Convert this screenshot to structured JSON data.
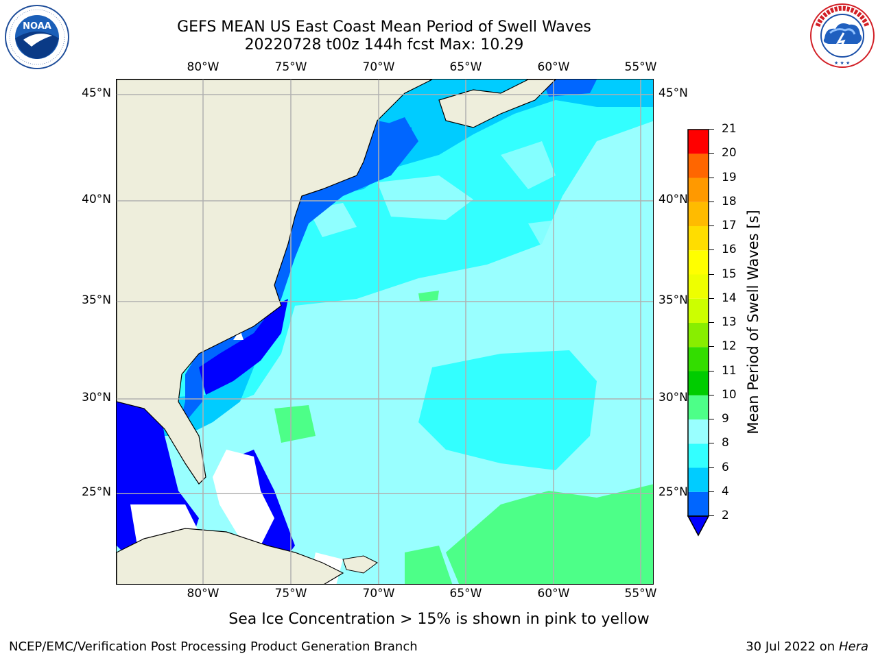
{
  "title_line1": "GEFS MEAN US East Coast Mean Period of Swell Waves",
  "title_line2": "20220728 t00z 144h fcst   Max: 10.29",
  "lon_labels": [
    "80°W",
    "75°W",
    "70°W",
    "65°W",
    "60°W",
    "55°W"
  ],
  "lat_labels": [
    "45°N",
    "40°N",
    "35°N",
    "30°N",
    "25°N"
  ],
  "colorbar": {
    "label": "Mean Period of Swell Waves [s]",
    "ticks": [
      "2",
      "4",
      "6",
      "8",
      "9",
      "10",
      "11",
      "12",
      "13",
      "14",
      "15",
      "16",
      "17",
      "18",
      "19",
      "20",
      "21"
    ],
    "colors": [
      "#0066ff",
      "#00ccff",
      "#33ffff",
      "#99ffff",
      "#4dff88",
      "#00cc00",
      "#33dd00",
      "#88ee00",
      "#ccff00",
      "#eeff00",
      "#ffff00",
      "#ffdd00",
      "#ffbb00",
      "#ff9900",
      "#ff6600",
      "#ff3300",
      "#ff0000"
    ],
    "under_color": "#0000ff"
  },
  "ice_note": "Sea Ice Concentration > 15% is shown in pink to yellow",
  "footer_left": "NCEP/EMC/Verification Post Processing Product Generation Branch",
  "footer_right_date": "30 Jul 2022 on",
  "footer_right_host": "Hera",
  "logos": {
    "noaa_text": "NOAA",
    "noaa_ring_text": "NATIONAL OCEANIC AND ATMOSPHERIC ADMINISTRATION · U.S. DEPARTMENT OF COMMERCE",
    "nws_ring_text": "NATIONAL WEATHER SERVICE"
  },
  "colors": {
    "land": "#eeeedc",
    "grid": "#b0b0b0",
    "missing": "#ffffff"
  }
}
